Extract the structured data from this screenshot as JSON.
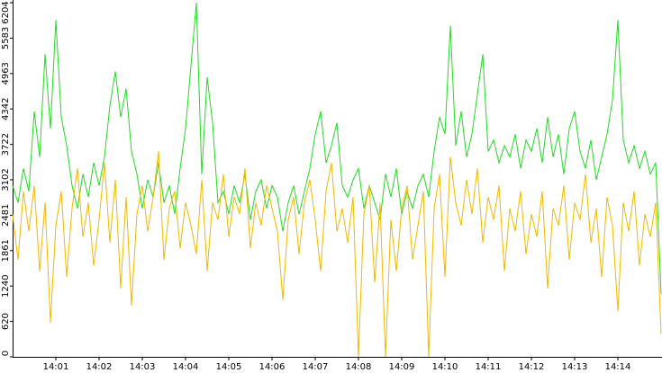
{
  "chart_data": {
    "type": "line",
    "categories": [
      null,
      null,
      null,
      null,
      null,
      null,
      null,
      null,
      "14:01",
      null,
      null,
      null,
      null,
      null,
      null,
      null,
      "14:02",
      null,
      null,
      null,
      null,
      null,
      null,
      null,
      "14:03",
      null,
      null,
      null,
      null,
      null,
      null,
      null,
      "14:04",
      null,
      null,
      null,
      null,
      null,
      null,
      null,
      "14:05",
      null,
      null,
      null,
      null,
      null,
      null,
      null,
      "14:06",
      null,
      null,
      null,
      null,
      null,
      null,
      null,
      "14:07",
      null,
      null,
      null,
      null,
      null,
      null,
      null,
      "14:08",
      null,
      null,
      null,
      null,
      null,
      null,
      null,
      "14:09",
      null,
      null,
      null,
      null,
      null,
      null,
      null,
      "14:10",
      null,
      null,
      null,
      null,
      null,
      null,
      null,
      "14:11",
      null,
      null,
      null,
      null,
      null,
      null,
      null,
      "14:12",
      null,
      null,
      null,
      null,
      null,
      null,
      null,
      "14:13",
      null,
      null,
      null,
      null,
      null,
      null,
      null,
      "14:14",
      null,
      null,
      null,
      null,
      null,
      null,
      null,
      null
    ],
    "series": [
      {
        "color": "#22dd22",
        "values": [
          3000,
          2700,
          3300,
          2900,
          4300,
          3500,
          5300,
          4000,
          5900,
          4200,
          3700,
          3000,
          2600,
          3200,
          2800,
          3400,
          3000,
          3500,
          4400,
          5000,
          4200,
          4700,
          3600,
          3200,
          2600,
          3100,
          2800,
          3400,
          2700,
          3000,
          2500,
          3300,
          4000,
          5100,
          6204,
          3200,
          4900,
          4100,
          2700,
          2900,
          2500,
          3000,
          2700,
          3200,
          2400,
          2900,
          3100,
          2600,
          3000,
          2800,
          2200,
          2700,
          3000,
          2500,
          2900,
          3300,
          3900,
          4300,
          3400,
          3700,
          4100,
          3000,
          2800,
          3100,
          3300,
          2600,
          3000,
          2700,
          2400,
          3200,
          2800,
          3300,
          2500,
          2900,
          2600,
          3000,
          3200,
          2800,
          3600,
          4200,
          3900,
          5800,
          3700,
          4300,
          3500,
          3900,
          4600,
          5300,
          3600,
          3800,
          3400,
          3700,
          3500,
          3900,
          3300,
          3800,
          3600,
          4000,
          3400,
          4200,
          3500,
          3900,
          3200,
          4000,
          4300,
          3600,
          3300,
          3800,
          3100,
          3500,
          3900,
          4500,
          5900,
          3800,
          3400,
          3700,
          3300,
          3600,
          3200,
          3400,
          1100
        ]
      },
      {
        "color": "#f5b800",
        "values": [
          2500,
          1700,
          2900,
          2200,
          3000,
          1500,
          2700,
          600,
          2300,
          2900,
          1400,
          2600,
          3300,
          2100,
          2700,
          1600,
          2400,
          3400,
          2000,
          3100,
          1200,
          2800,
          900,
          2500,
          3000,
          2200,
          2800,
          3600,
          1700,
          2600,
          2900,
          1900,
          2700,
          2300,
          1800,
          3100,
          1500,
          2700,
          2400,
          3200,
          2100,
          2800,
          2500,
          3300,
          1900,
          2700,
          2300,
          3000,
          2600,
          2200,
          1000,
          2400,
          2800,
          1800,
          2700,
          3100,
          2400,
          1500,
          2900,
          3400,
          2200,
          2600,
          2000,
          2800,
          0,
          2500,
          3000,
          1300,
          2700,
          0,
          2400,
          1500,
          2600,
          3000,
          1700,
          2300,
          2900,
          0,
          2600,
          3200,
          1400,
          3500,
          2700,
          2300,
          3100,
          2500,
          3300,
          2000,
          2800,
          2400,
          3000,
          1500,
          2600,
          2200,
          2900,
          1800,
          2500,
          2100,
          2900,
          1200,
          2600,
          2300,
          3000,
          1700,
          2700,
          2400,
          3200,
          2000,
          2600,
          1400,
          2800,
          2300,
          800,
          2700,
          2200,
          2900,
          1600,
          2500,
          2100,
          2700,
          400
        ]
      }
    ],
    "ylim": [
      0,
      6204
    ],
    "yticks": [
      0,
      620,
      1240,
      1861,
      2481,
      3102,
      3722,
      4342,
      4963,
      5583,
      6204
    ]
  }
}
